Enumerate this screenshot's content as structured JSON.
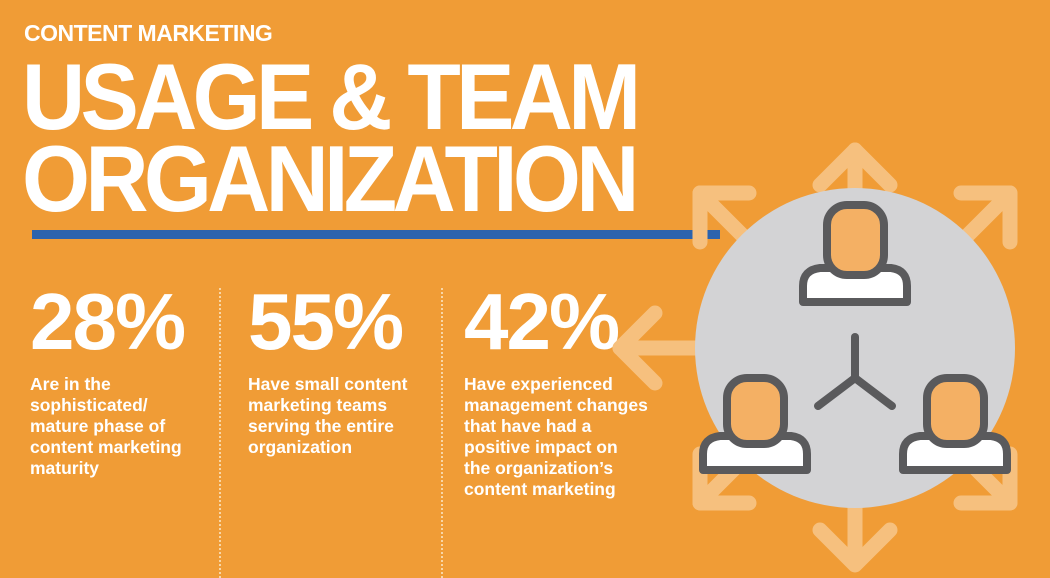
{
  "header": {
    "kicker": "CONTENT MARKETING",
    "title_line1": "USAGE & TEAM",
    "title_line2": "ORGANIZATION"
  },
  "stats": [
    {
      "value": "28%",
      "lines": [
        "Are in the",
        "sophisticated/",
        "mature phase of",
        "content marketing",
        "maturity"
      ]
    },
    {
      "value": "55%",
      "lines": [
        "Have small content",
        "marketing teams",
        "serving the entire",
        "organization"
      ]
    },
    {
      "value": "42%",
      "lines": [
        "Have experienced",
        "management changes",
        "that have had a",
        "positive impact on",
        "the organization’s",
        "content marketing"
      ]
    }
  ],
  "colors": {
    "background": "#f09c36",
    "accent_rule": "#2c63ad",
    "circle": "#d3d3d5",
    "icon_stroke": "#5a5a5c",
    "icon_head": "#f4b064",
    "arrow": "#f6c07e"
  },
  "graphic": {
    "icons": [
      "team-network-circle",
      "person-icon",
      "arrows-outward",
      "connector-icon"
    ]
  }
}
